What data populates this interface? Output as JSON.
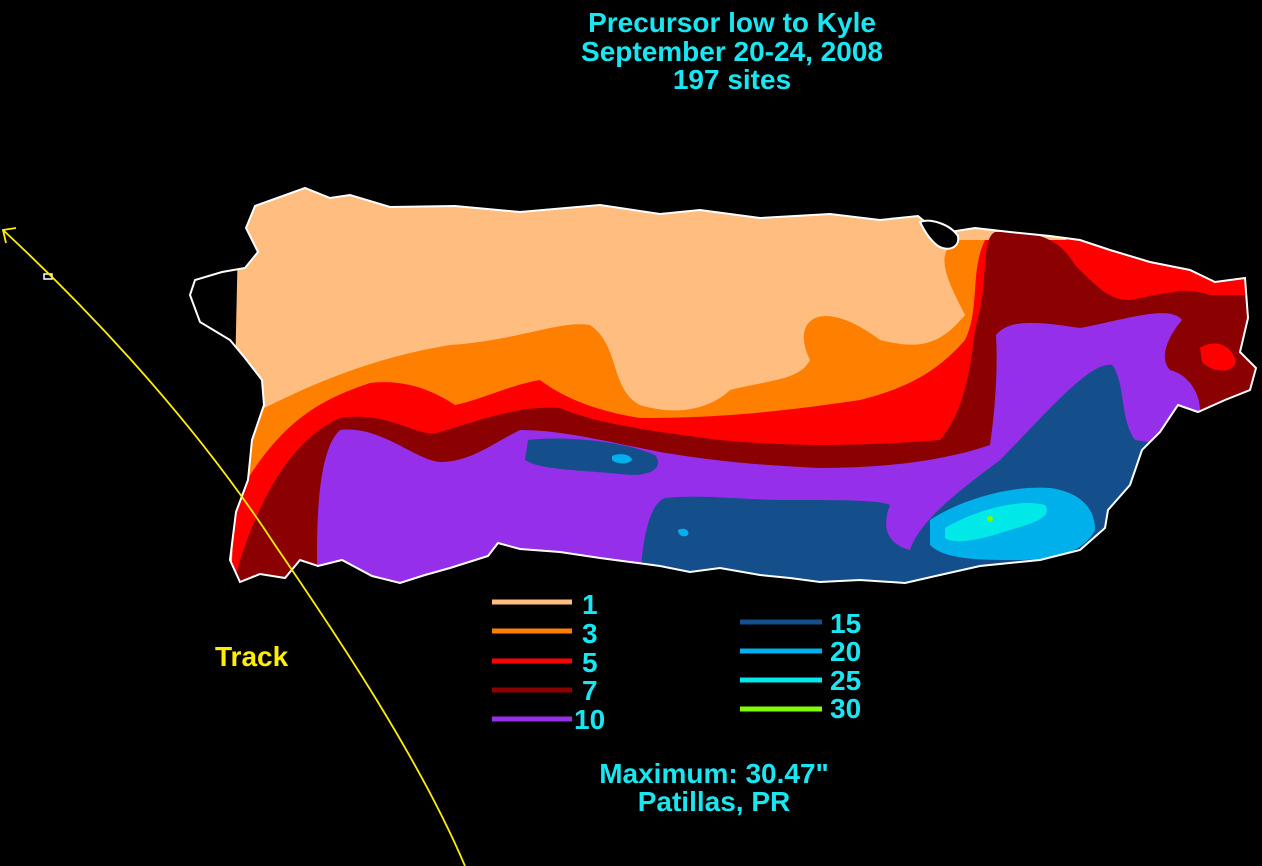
{
  "title": {
    "line1": "Precursor low to Kyle",
    "line2": "September 20-24, 2008",
    "line3": "197 sites"
  },
  "track_label": "Track",
  "maximum": {
    "line1": "Maximum:  30.47\"",
    "line2": "Patillas, PR"
  },
  "legend": {
    "items": [
      {
        "label": "1",
        "color": "#ffbe80"
      },
      {
        "label": "3",
        "color": "#ff8000"
      },
      {
        "label": "5",
        "color": "#ff0000"
      },
      {
        "label": "7",
        "color": "#8b0000"
      },
      {
        "label": "10",
        "color": "#962fea"
      },
      {
        "label": "15",
        "color": "#144f8c"
      },
      {
        "label": "20",
        "color": "#00b0ea"
      },
      {
        "label": "25",
        "color": "#00e8e8"
      },
      {
        "label": "30",
        "color": "#80ff00"
      }
    ]
  },
  "colors": {
    "background": "#000000",
    "text": "#19e6f0",
    "track": "#ffee00",
    "coastline": "#ffffff"
  }
}
